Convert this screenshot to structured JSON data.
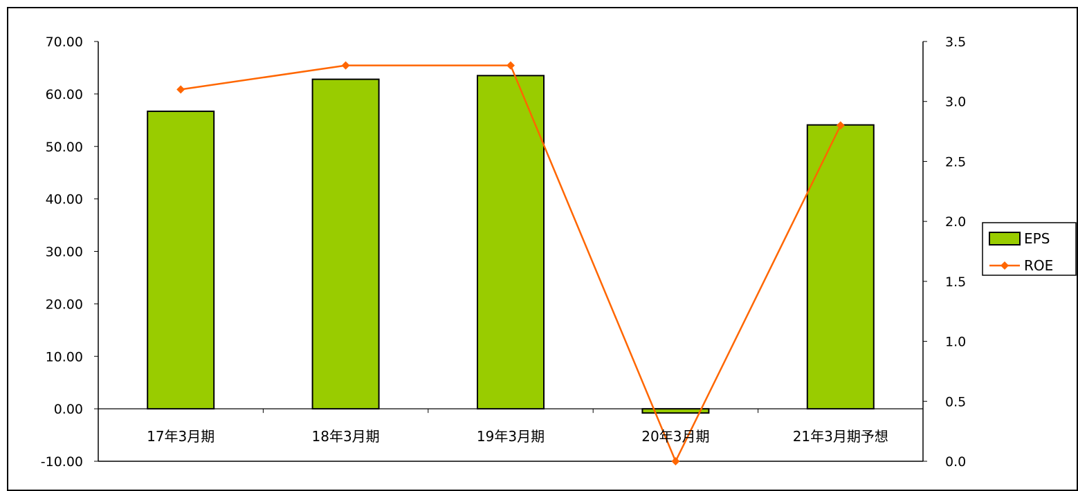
{
  "chart_data": {
    "type": "bar+line",
    "categories": [
      "17年3月期",
      "18年3月期",
      "19年3月期",
      "20年3月期",
      "21年3月期予想"
    ],
    "series": [
      {
        "name": "EPS",
        "type": "bar",
        "axis": "left",
        "values": [
          56.7,
          62.8,
          63.5,
          -0.8,
          54.1
        ],
        "color": "#99cc00"
      },
      {
        "name": "ROE",
        "type": "line",
        "axis": "right",
        "values": [
          3.1,
          3.3,
          3.3,
          0.0,
          2.8
        ],
        "color": "#ff6600"
      }
    ],
    "y_left": {
      "min": -10,
      "max": 70,
      "step": 10,
      "ticks": [
        "-10.00",
        "0.00",
        "10.00",
        "20.00",
        "30.00",
        "40.00",
        "50.00",
        "60.00",
        "70.00"
      ],
      "negative_color": "#ff0000"
    },
    "y_right": {
      "min": 0,
      "max": 3.5,
      "step": 0.5,
      "ticks": [
        "0.0",
        "0.5",
        "1.0",
        "1.5",
        "2.0",
        "2.5",
        "3.0",
        "3.5"
      ]
    },
    "grid": false,
    "legend_position": "right"
  }
}
